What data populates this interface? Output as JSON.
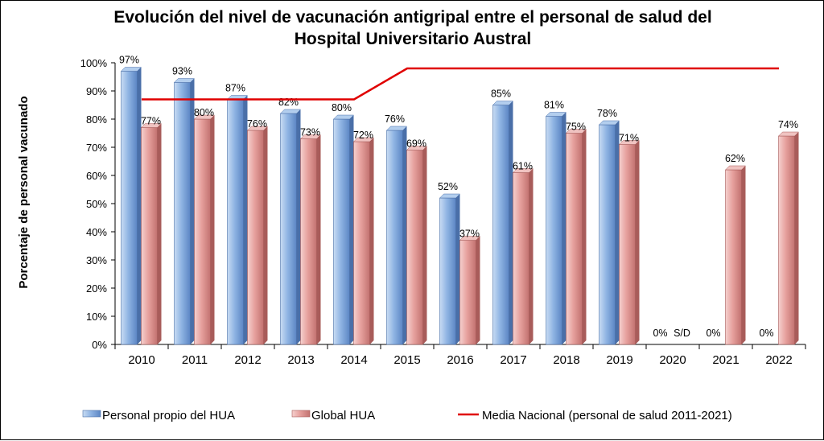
{
  "chart_data": {
    "type": "bar",
    "title": "Evolución del nivel de vacunación antigripal entre el personal de salud del Hospital Universitario Austral",
    "title_lines": [
      "Evolución del nivel de vacunación antigripal entre el personal de salud del",
      "Hospital Universitario Austral"
    ],
    "xlabel": "",
    "ylabel": "Porcentaje de personal vacunado",
    "ylim": [
      0,
      100
    ],
    "y_ticks": [
      0,
      10,
      20,
      30,
      40,
      50,
      60,
      70,
      80,
      90,
      100
    ],
    "y_tick_labels": [
      "0%",
      "10%",
      "20%",
      "30%",
      "40%",
      "50%",
      "60%",
      "70%",
      "80%",
      "90%",
      "100%"
    ],
    "grid": false,
    "legend_position": "bottom",
    "categories": [
      "2010",
      "2011",
      "2012",
      "2013",
      "2014",
      "2015",
      "2016",
      "2017",
      "2018",
      "2019",
      "2020",
      "2021",
      "2022"
    ],
    "series": [
      {
        "name": "Personal propio del HUA",
        "kind": "bar",
        "color": "#8fb4e3",
        "values": [
          97,
          93,
          87,
          82,
          80,
          76,
          52,
          85,
          81,
          78,
          0,
          0,
          0
        ],
        "labels": [
          "97%",
          "93%",
          "87%",
          "82%",
          "80%",
          "76%",
          "52%",
          "85%",
          "81%",
          "78%",
          "0%",
          "0%",
          "0%"
        ]
      },
      {
        "name": "Global HUA",
        "kind": "bar",
        "color": "#e6a09d",
        "values": [
          77,
          80,
          76,
          73,
          72,
          69,
          37,
          61,
          75,
          71,
          0,
          62,
          74
        ],
        "labels": [
          "77%",
          "80%",
          "76%",
          "73%",
          "72%",
          "69%",
          "37%",
          "61%",
          "75%",
          "71%",
          "S/D",
          "62%",
          "74%"
        ]
      },
      {
        "name": "Media Nacional (personal de  salud 2011-2021)",
        "kind": "line",
        "color": "#e00000",
        "points": [
          {
            "x": "2010",
            "y": 87
          },
          {
            "x": "2014",
            "y": 87
          },
          {
            "x": "2015",
            "y": 98
          },
          {
            "x": "2022",
            "y": 98
          }
        ]
      }
    ]
  }
}
